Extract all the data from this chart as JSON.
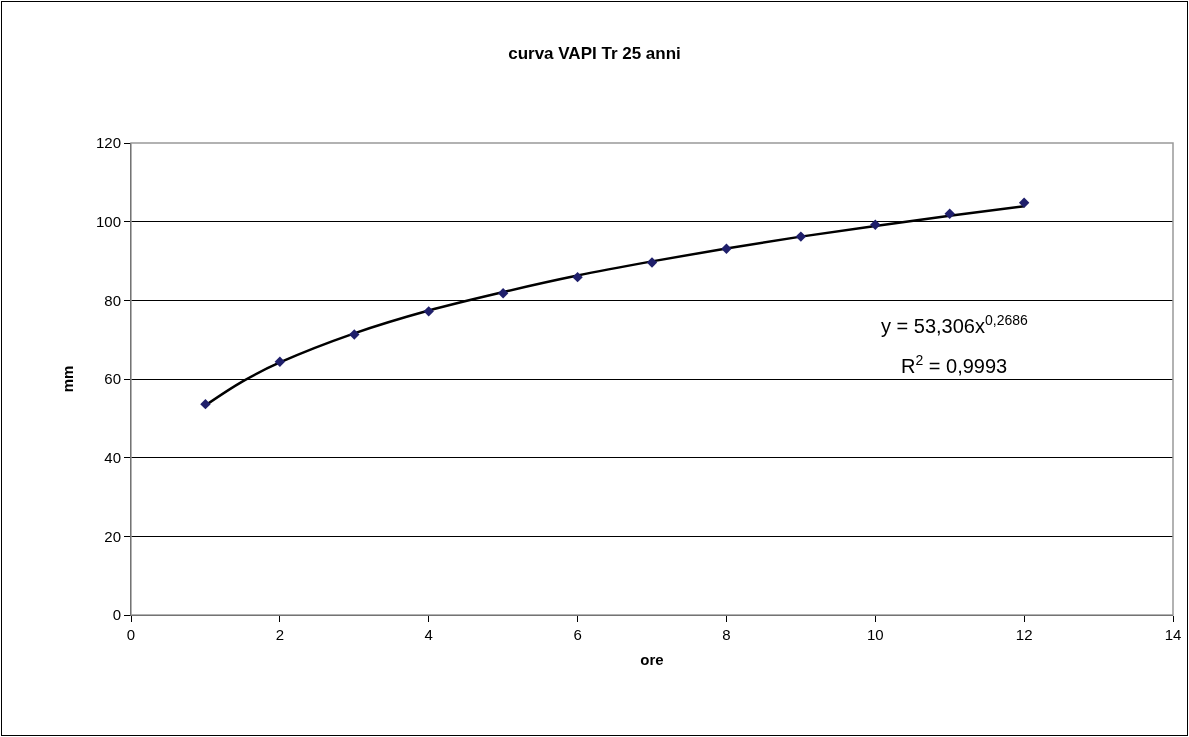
{
  "chart_data": {
    "type": "scatter",
    "title": "curva VAPI Tr 25 anni",
    "xlabel": "ore",
    "ylabel": "mm",
    "x": [
      1,
      2,
      3,
      4,
      5,
      6,
      7,
      8,
      9,
      10,
      11,
      12
    ],
    "series": [
      {
        "color": "#1f1f6b",
        "marker": "diamond",
        "values": [
          53.6,
          64.4,
          71.3,
          77.2,
          81.8,
          85.9,
          89.6,
          93.1,
          96.2,
          99.2,
          102.0,
          104.8
        ]
      },
      {
        "type": "line",
        "color": "#000000",
        "marker": "none",
        "x": [
          1,
          1.5,
          2,
          3,
          4,
          5,
          6,
          7,
          8,
          9,
          10,
          11,
          12
        ],
        "values": [
          53.3,
          59.4,
          64.2,
          71.6,
          77.4,
          82.1,
          86.3,
          89.9,
          93.2,
          96.2,
          98.9,
          101.5,
          103.9
        ]
      }
    ],
    "annotations": [
      "y = 53,306x$^{0,2686}$",
      "R$^{2}$ = 0,9993"
    ],
    "xlim": [
      0,
      14
    ],
    "xticks": [
      0,
      2,
      4,
      6,
      8,
      10,
      12,
      14
    ],
    "ylim": [
      0,
      120
    ],
    "yticks": [
      0,
      20,
      40,
      60,
      80,
      100,
      120
    ],
    "grid": "y"
  }
}
